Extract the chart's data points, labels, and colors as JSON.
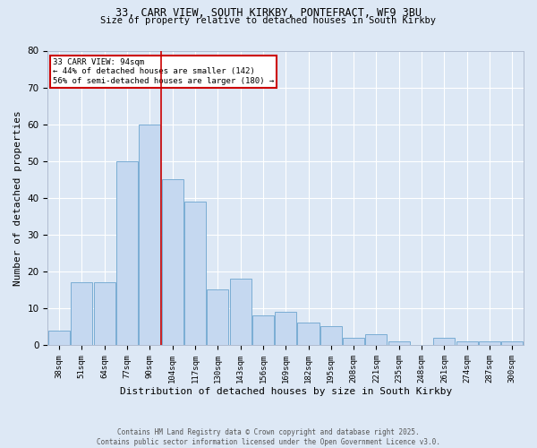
{
  "title1": "33, CARR VIEW, SOUTH KIRKBY, PONTEFRACT, WF9 3BU",
  "title2": "Size of property relative to detached houses in South Kirkby",
  "xlabel": "Distribution of detached houses by size in South Kirkby",
  "ylabel": "Number of detached properties",
  "bar_labels": [
    "38sqm",
    "51sqm",
    "64sqm",
    "77sqm",
    "90sqm",
    "104sqm",
    "117sqm",
    "130sqm",
    "143sqm",
    "156sqm",
    "169sqm",
    "182sqm",
    "195sqm",
    "208sqm",
    "221sqm",
    "235sqm",
    "248sqm",
    "261sqm",
    "274sqm",
    "287sqm",
    "300sqm"
  ],
  "bar_values": [
    4,
    17,
    17,
    50,
    60,
    45,
    39,
    15,
    18,
    8,
    9,
    6,
    5,
    2,
    3,
    1,
    0,
    2,
    1,
    1,
    1
  ],
  "bar_color": "#c5d8f0",
  "bar_edge_color": "#7aadd4",
  "background_color": "#dde8f5",
  "grid_color": "#ffffff",
  "red_line_x": 4.5,
  "annotation_text": "33 CARR VIEW: 94sqm\n← 44% of detached houses are smaller (142)\n56% of semi-detached houses are larger (180) →",
  "annotation_box_color": "#ffffff",
  "annotation_box_edge": "#cc0000",
  "footer_text": "Contains HM Land Registry data © Crown copyright and database right 2025.\nContains public sector information licensed under the Open Government Licence v3.0.",
  "ylim": [
    0,
    80
  ],
  "yticks": [
    0,
    10,
    20,
    30,
    40,
    50,
    60,
    70,
    80
  ]
}
